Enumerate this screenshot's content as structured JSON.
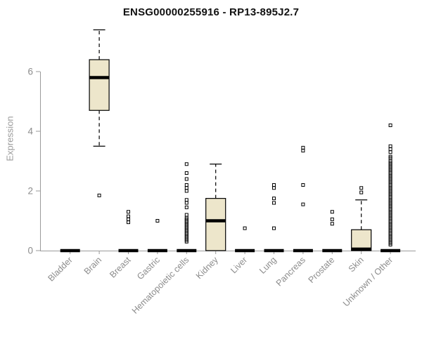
{
  "chart_data": {
    "type": "boxplot",
    "title": "ENSG00000255916 - RP13-895J2.7",
    "ylabel": "Expression",
    "ylim": [
      0,
      7.6
    ],
    "yticks": [
      0,
      2,
      4,
      6
    ],
    "grid": false,
    "legend": "none",
    "box_fill": "#EDE6CB",
    "box_stroke": "#000000",
    "axis_color": "#9a9a9a",
    "tick_label_color": "#8c8c8c",
    "categories": [
      "Bladder",
      "Brain",
      "Breast",
      "Gastric",
      "Hematopoietic cells",
      "Kidney",
      "Liver",
      "Lung",
      "Pancreas",
      "Prostate",
      "Skin",
      "Unknown / Other"
    ],
    "series": [
      {
        "category": "Bladder",
        "low": 0,
        "q1": 0,
        "median": 0,
        "q3": 0,
        "high": 0,
        "outliers": []
      },
      {
        "category": "Brain",
        "low": 3.5,
        "q1": 4.7,
        "median": 5.8,
        "q3": 6.4,
        "high": 7.4,
        "outliers": [
          1.85
        ]
      },
      {
        "category": "Breast",
        "low": 0,
        "q1": 0,
        "median": 0,
        "q3": 0,
        "high": 0,
        "outliers": [
          0.95,
          1.05,
          1.15,
          1.3
        ]
      },
      {
        "category": "Gastric",
        "low": 0,
        "q1": 0,
        "median": 0,
        "q3": 0,
        "high": 0,
        "outliers": [
          1.0
        ]
      },
      {
        "category": "Hematopoietic cells",
        "low": 0,
        "q1": 0,
        "median": 0,
        "q3": 0,
        "high": 0,
        "outliers": [
          0.3,
          0.35,
          0.4,
          0.45,
          0.5,
          0.55,
          0.6,
          0.65,
          0.7,
          0.75,
          0.8,
          0.85,
          0.9,
          0.95,
          1.0,
          1.05,
          1.1,
          1.2,
          1.45,
          1.6,
          1.7,
          2.0,
          2.1,
          2.2,
          2.4,
          2.6,
          2.9
        ]
      },
      {
        "category": "Kidney",
        "low": 0,
        "q1": 0,
        "median": 1.0,
        "q3": 1.75,
        "high": 2.9,
        "outliers": []
      },
      {
        "category": "Liver",
        "low": 0,
        "q1": 0,
        "median": 0,
        "q3": 0,
        "high": 0,
        "outliers": [
          0.75
        ]
      },
      {
        "category": "Lung",
        "low": 0,
        "q1": 0,
        "median": 0,
        "q3": 0,
        "high": 0,
        "outliers": [
          0.75,
          1.6,
          1.75,
          2.1,
          2.2
        ]
      },
      {
        "category": "Pancreas",
        "low": 0,
        "q1": 0,
        "median": 0,
        "q3": 0,
        "high": 0,
        "outliers": [
          1.55,
          2.2,
          3.35,
          3.45
        ]
      },
      {
        "category": "Prostate",
        "low": 0,
        "q1": 0,
        "median": 0,
        "q3": 0,
        "high": 0,
        "outliers": [
          0.9,
          1.05,
          1.3
        ]
      },
      {
        "category": "Skin",
        "low": 0,
        "q1": 0,
        "median": 0.05,
        "q3": 0.7,
        "high": 1.7,
        "outliers": [
          1.95,
          2.1
        ]
      },
      {
        "category": "Unknown / Other",
        "low": 0,
        "q1": 0,
        "median": 0,
        "q3": 0,
        "high": 0,
        "outliers": [
          0.2,
          0.25,
          0.3,
          0.35,
          0.4,
          0.45,
          0.5,
          0.55,
          0.6,
          0.65,
          0.7,
          0.75,
          0.8,
          0.85,
          0.9,
          0.95,
          1.0,
          1.05,
          1.1,
          1.15,
          1.2,
          1.25,
          1.3,
          1.35,
          1.4,
          1.45,
          1.5,
          1.55,
          1.6,
          1.65,
          1.7,
          1.75,
          1.8,
          1.85,
          1.9,
          1.95,
          2.0,
          2.05,
          2.1,
          2.15,
          2.2,
          2.25,
          2.3,
          2.35,
          2.4,
          2.45,
          2.5,
          2.55,
          2.6,
          2.65,
          2.7,
          2.75,
          2.8,
          2.85,
          2.9,
          2.95,
          3.0,
          3.1,
          3.15,
          3.3,
          3.4,
          3.5,
          4.2
        ]
      }
    ]
  }
}
